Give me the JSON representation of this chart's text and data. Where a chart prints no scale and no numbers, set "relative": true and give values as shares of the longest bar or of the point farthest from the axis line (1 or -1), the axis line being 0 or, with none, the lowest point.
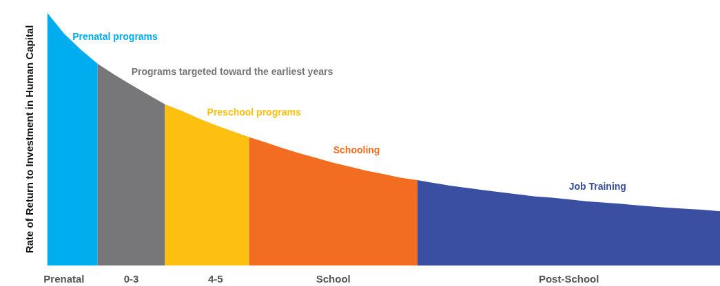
{
  "chart_data": {
    "type": "area",
    "relative": true,
    "ylabel": "Rate of Return to Investment in Human Capital",
    "grid": false,
    "legend": false,
    "categories": [
      null,
      "Prenatal",
      null,
      null,
      null,
      "0-3",
      null,
      null,
      null,
      null,
      "4-5",
      null,
      null,
      null,
      null,
      null,
      null,
      "School",
      null,
      null,
      null,
      null,
      null,
      null,
      null,
      null,
      null,
      null,
      null,
      null,
      null,
      "Post-School",
      null,
      null,
      null,
      null,
      null,
      null,
      null,
      null,
      null
    ],
    "series": [
      {
        "name": "Prenatal programs",
        "color": "#00aeef",
        "values": [
          1.0,
          0.918,
          0.854,
          0.798,
          null,
          null,
          null,
          null,
          null,
          null,
          null,
          null,
          null,
          null,
          null,
          null,
          null,
          null,
          null,
          null,
          null,
          null,
          null,
          null,
          null,
          null,
          null,
          null,
          null,
          null,
          null,
          null,
          null,
          null,
          null,
          null,
          null,
          null,
          null,
          null,
          null
        ]
      },
      {
        "name": "Programs targeted toward the earliest years",
        "color": "#77777a",
        "values": [
          null,
          null,
          null,
          0.798,
          0.755,
          0.715,
          0.676,
          0.638,
          null,
          null,
          null,
          null,
          null,
          null,
          null,
          null,
          null,
          null,
          null,
          null,
          null,
          null,
          null,
          null,
          null,
          null,
          null,
          null,
          null,
          null,
          null,
          null,
          null,
          null,
          null,
          null,
          null,
          null,
          null,
          null,
          null
        ]
      },
      {
        "name": "Preschool programs",
        "color": "#fdc010",
        "values": [
          null,
          null,
          null,
          null,
          null,
          null,
          null,
          0.638,
          0.612,
          0.582,
          0.556,
          0.532,
          0.508,
          null,
          null,
          null,
          null,
          null,
          null,
          null,
          null,
          null,
          null,
          null,
          null,
          null,
          null,
          null,
          null,
          null,
          null,
          null,
          null,
          null,
          null,
          null,
          null,
          null,
          null,
          null,
          null
        ]
      },
      {
        "name": "Schooling",
        "color": "#f26d21",
        "values": [
          null,
          null,
          null,
          null,
          null,
          null,
          null,
          null,
          null,
          null,
          null,
          null,
          0.508,
          0.487,
          0.465,
          0.444,
          0.426,
          0.407,
          0.391,
          0.375,
          0.362,
          0.348,
          0.338,
          null,
          null,
          null,
          null,
          null,
          null,
          null,
          null,
          null,
          null,
          null,
          null,
          null,
          null,
          null,
          null,
          null,
          null
        ]
      },
      {
        "name": "Job Training",
        "color": "#3a4fa1",
        "values": [
          null,
          null,
          null,
          null,
          null,
          null,
          null,
          null,
          null,
          null,
          null,
          null,
          null,
          null,
          null,
          null,
          null,
          null,
          null,
          null,
          null,
          null,
          0.338,
          0.327,
          0.316,
          0.307,
          0.298,
          0.29,
          0.282,
          0.274,
          0.269,
          0.262,
          0.255,
          0.25,
          0.245,
          0.239,
          0.234,
          0.229,
          0.225,
          0.221,
          0.215
        ]
      }
    ]
  }
}
